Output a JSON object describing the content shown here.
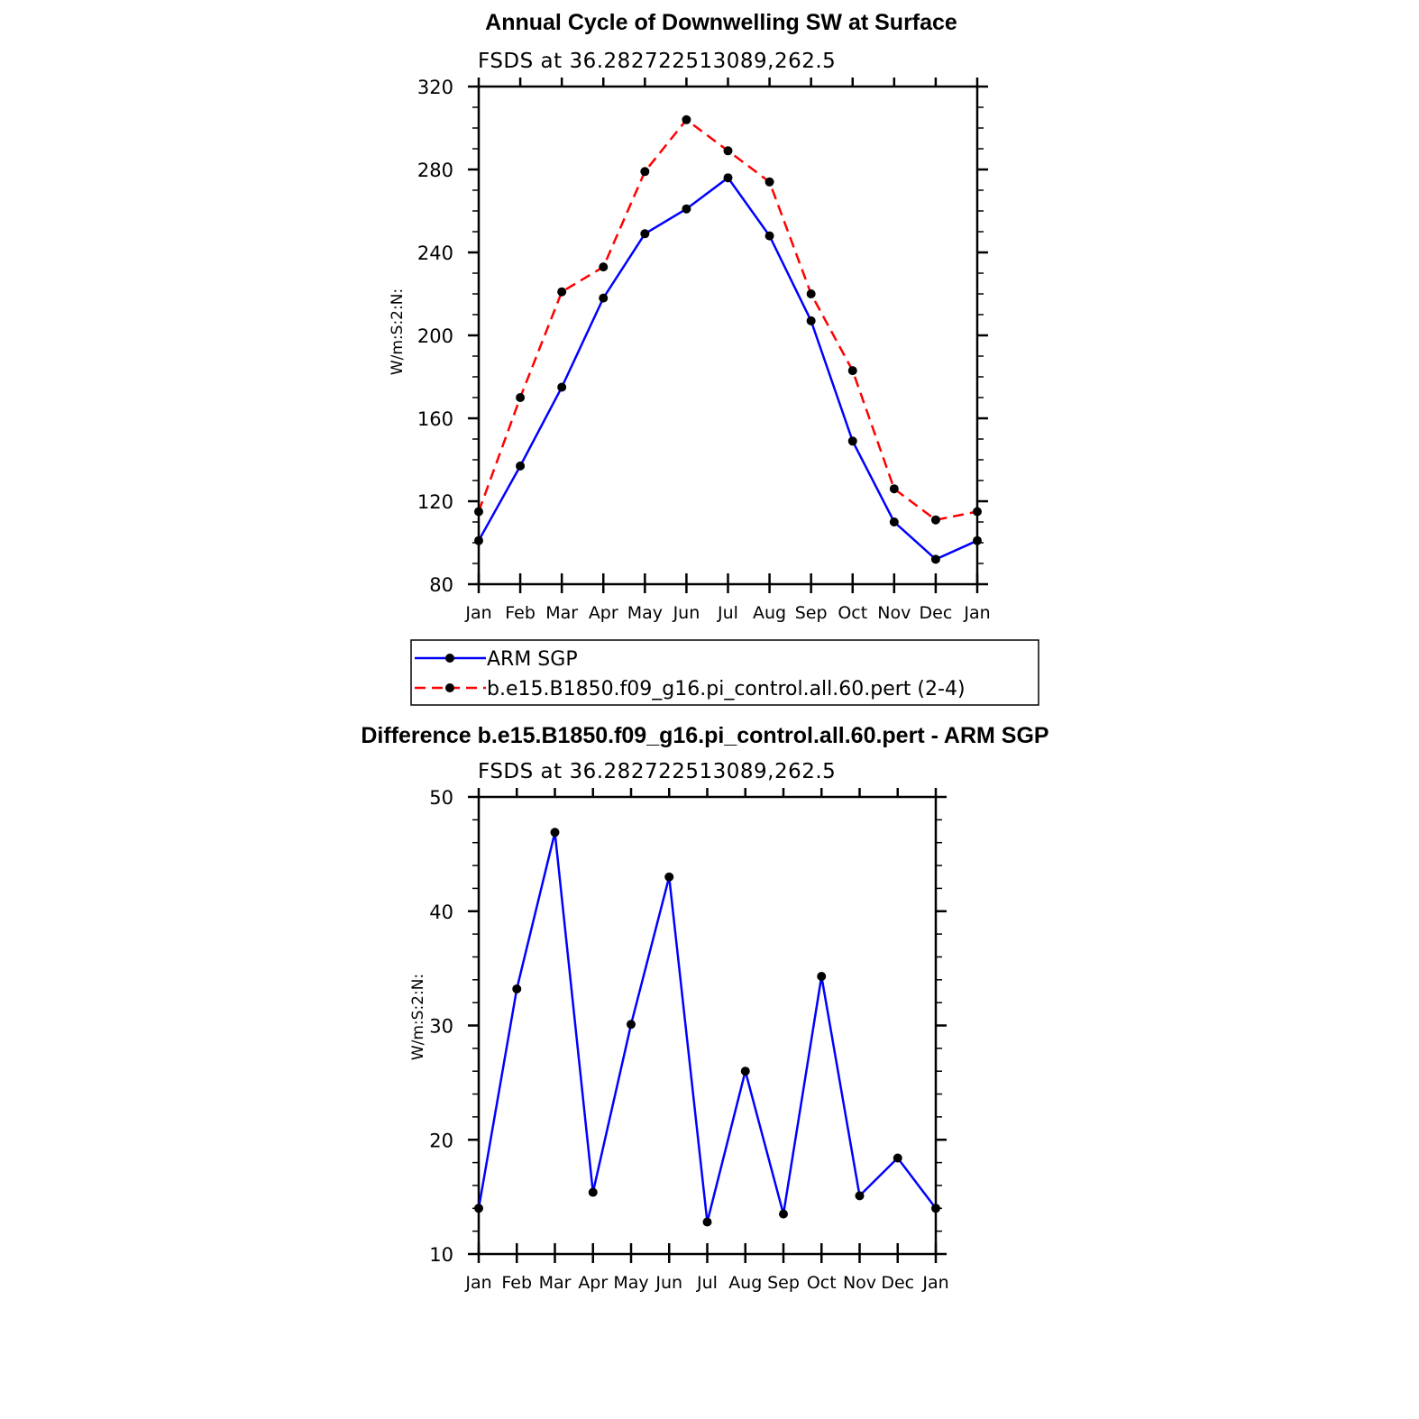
{
  "colors": {
    "arm_sgp": "#0000ff",
    "model": "#ff0000",
    "difference": "#0000ff",
    "marker": "#000000"
  },
  "chart_data": [
    {
      "type": "line",
      "title": "Annual Cycle of Downwelling SW at Surface",
      "subtitle": "FSDS at 36.282722513089,262.5",
      "xlabel": "",
      "ylabel": "W/m:S:2:N:",
      "categories": [
        "Jan",
        "Feb",
        "Mar",
        "Apr",
        "May",
        "Jun",
        "Jul",
        "Aug",
        "Sep",
        "Oct",
        "Nov",
        "Dec",
        "Jan"
      ],
      "ylim": [
        80,
        320
      ],
      "yticks": [
        80,
        120,
        160,
        200,
        240,
        280,
        320
      ],
      "grid": false,
      "legend_placement": "bottom",
      "series": [
        {
          "name": "ARM SGP",
          "style": "solid",
          "color": "#0000ff",
          "values": [
            101,
            137,
            175,
            218,
            249,
            261,
            276,
            248,
            207,
            149,
            110,
            92,
            101
          ]
        },
        {
          "name": "b.e15.B1850.f09_g16.pi_control.all.60.pert (2-4)",
          "style": "dashed",
          "color": "#ff0000",
          "values": [
            115,
            170,
            221,
            233,
            279,
            304,
            289,
            274,
            220,
            183,
            126,
            111,
            115
          ]
        }
      ]
    },
    {
      "type": "line",
      "title": "Difference b.e15.B1850.f09_g16.pi_control.all.60.pert - ARM SGP",
      "subtitle": "FSDS at 36.282722513089,262.5",
      "xlabel": "",
      "ylabel": "W/m:S:2:N:",
      "categories": [
        "Jan",
        "Feb",
        "Mar",
        "Apr",
        "May",
        "Jun",
        "Jul",
        "Aug",
        "Sep",
        "Oct",
        "Nov",
        "Dec",
        "Jan"
      ],
      "ylim": [
        10,
        50
      ],
      "yticks": [
        10,
        20,
        30,
        40,
        50
      ],
      "grid": false,
      "series": [
        {
          "style": "solid",
          "color": "#0000ff",
          "values": [
            14,
            33.2,
            46.9,
            15.4,
            30.1,
            43,
            12.8,
            26,
            13.5,
            34.3,
            15.1,
            18.4,
            14
          ]
        }
      ]
    }
  ]
}
